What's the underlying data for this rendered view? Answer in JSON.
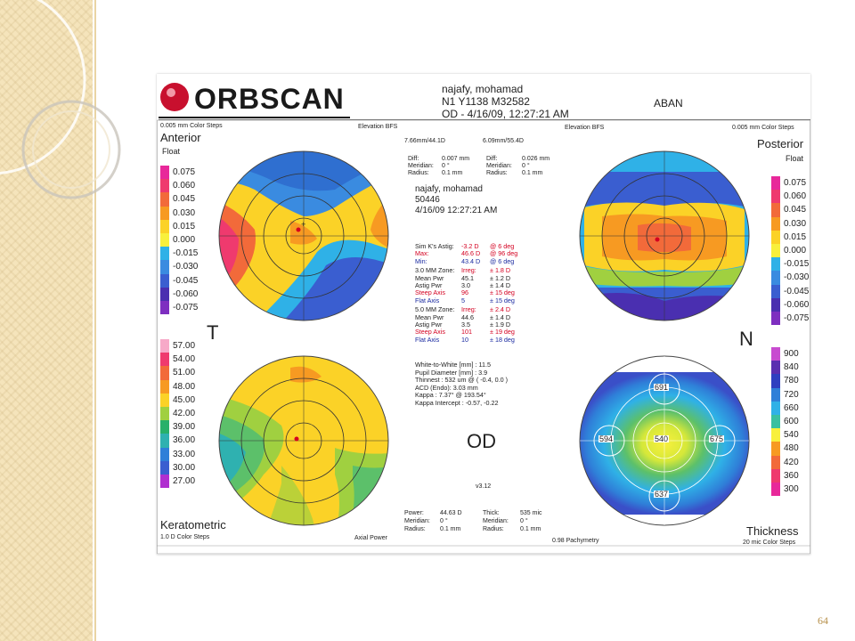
{
  "slide": {
    "page_number": "64"
  },
  "logo": {
    "text": "ORBSCAN"
  },
  "patient": {
    "name": "najafy, mohamad",
    "code": "N1 Y1138 M32582",
    "eye_date": "OD - 4/16/09, 12:27:21 AM",
    "clinic": "ABAN"
  },
  "anterior": {
    "title": "Anterior",
    "subtitle": "Float",
    "color_steps": "0.005 mm Color Steps",
    "elevation": "Elevation BFS",
    "bfs": "7.66mm/44.1D",
    "diff_label": "Diff:",
    "diff_value": "0.007 mm",
    "meridian_label": "Meridian:",
    "meridian_value": "0 °",
    "radius_label": "Radius:",
    "radius_value": "0.1 mm",
    "scale": [
      "0.075",
      "0.060",
      "0.045",
      "0.030",
      "0.015",
      "0.000",
      "-0.015",
      "-0.030",
      "-0.045",
      "-0.060",
      "-0.075"
    ],
    "scale_colors": [
      "#e8289a",
      "#ef3a6e",
      "#f26a3a",
      "#f79a22",
      "#fbd227",
      "#f8f03c",
      "#2fb1e7",
      "#3a8be0",
      "#3a5ed0",
      "#4a2fb0",
      "#7e2fc0"
    ]
  },
  "posterior": {
    "title": "Posterior",
    "subtitle": "Float",
    "color_steps": "0.005 mm Color Steps",
    "elevation": "Elevation BFS",
    "bfs": "6.09mm/55.4D",
    "diff_label": "Diff:",
    "diff_value": "0.026 mm",
    "meridian_label": "Meridian:",
    "meridian_value": "0 °",
    "radius_label": "Radius:",
    "radius_value": "0.1 mm",
    "scale": [
      "0.075",
      "0.060",
      "0.045",
      "0.030",
      "0.015",
      "0.000",
      "-0.015",
      "-0.030",
      "-0.045",
      "-0.060",
      "-0.075"
    ]
  },
  "center_block": {
    "name": "najafy, mohamad",
    "id": "50446",
    "date": "4/16/09 12:27:21 AM"
  },
  "sim_k": {
    "astig_label": "Sim K's Astig:",
    "astig_value": "-3.2 D",
    "astig_axis": "@ 6 deg",
    "max_label": "Max:",
    "max_value": "46.6 D",
    "max_axis": "@ 96 deg",
    "min_label": "Min:",
    "min_value": "43.4 D",
    "min_axis": "@ 6 deg"
  },
  "zone3": {
    "zone_label": "3.0 MM Zone:",
    "irreg_label": "Irreg:",
    "irreg_value": "± 1.8 D",
    "mean_label": "Mean Pwr",
    "mean_value": "45.1",
    "mean_sd": "± 1.2 D",
    "astig_label": "Astig Pwr",
    "astig_value": "3.0",
    "astig_sd": "± 1.4 D",
    "steep_label": "Steep Axis",
    "steep_value": "96",
    "steep_sd": "± 15 deg",
    "flat_label": "Flat Axis",
    "flat_value": "5",
    "flat_sd": "± 15 deg"
  },
  "zone5": {
    "zone_label": "5.0 MM Zone:",
    "irreg_label": "Irreg:",
    "irreg_value": "± 2.4 D",
    "mean_label": "Mean Pwr",
    "mean_value": "44.6",
    "mean_sd": "± 1.4 D",
    "astig_label": "Astig Pwr",
    "astig_value": "3.5",
    "astig_sd": "± 1.9 D",
    "steep_label": "Steep Axis",
    "steep_value": "101",
    "steep_sd": "± 19 deg",
    "flat_label": "Flat Axis",
    "flat_value": "10",
    "flat_sd": "± 18 deg"
  },
  "misc": {
    "wtw": "White-to-White [mm] : 11.5",
    "pupil": "Pupil Diameter [mm] : 3.9",
    "thinnest": "Thinnest : 532 um @ ( -0.4, 0.0 )",
    "acd": "ACD (Endo): 3.03 mm",
    "kappa": "Kappa : 7.37° @ 193.54°",
    "kappa_intercept": "Kappa Intercept : -0.57, -0.22"
  },
  "labels": {
    "temporal": "T",
    "nasal": "N",
    "eye": "OD",
    "version": "v3.12"
  },
  "keratometric": {
    "title": "Keratometric",
    "color_steps": "1.0 D Color Steps",
    "map_type": "Axial Power",
    "power_label": "Power:",
    "power_value": "44.63 D",
    "meridian_label": "Meridian:",
    "meridian_value": "0 °",
    "radius_label": "Radius:",
    "radius_value": "0.1 mm",
    "scale": [
      "57.00",
      "54.00",
      "51.00",
      "48.00",
      "45.00",
      "42.00",
      "39.00",
      "36.00",
      "33.00",
      "30.00",
      "27.00"
    ],
    "scale_colors": [
      "#f7a9c8",
      "#ef3a6e",
      "#f26a3a",
      "#f79a22",
      "#fbd227",
      "#a0d040",
      "#28b06a",
      "#2fb1b0",
      "#2f7fd8",
      "#3a5ed0",
      "#b02fd0"
    ]
  },
  "thickness": {
    "title": "Thickness",
    "color_steps": "20 mic Color Steps",
    "pachymetry": "0.98 Pachymetry",
    "thick_label": "Thick:",
    "thick_value": "535 mic",
    "meridian_label": "Meridian:",
    "meridian_value": "0 °",
    "radius_label": "Radius:",
    "radius_value": "0.1 mm",
    "scale": [
      "900",
      "840",
      "780",
      "720",
      "660",
      "600",
      "540",
      "480",
      "420",
      "360",
      "300"
    ],
    "scale_colors": [
      "#c84bd0",
      "#5a2fb0",
      "#2f3fc0",
      "#2f7fd8",
      "#2fb1e7",
      "#3ac0a0",
      "#f8f03c",
      "#f79a22",
      "#f26a3a",
      "#ef3a6e",
      "#e8289a"
    ],
    "center_value": "540",
    "superior_value": "691",
    "inferior_value": "637",
    "temporal_value": "594",
    "nasal_value": "675"
  },
  "colors": {
    "accent_red": "#d40020",
    "accent_blue": "#1a2aa0",
    "slide_border": "#e9d4a4"
  }
}
